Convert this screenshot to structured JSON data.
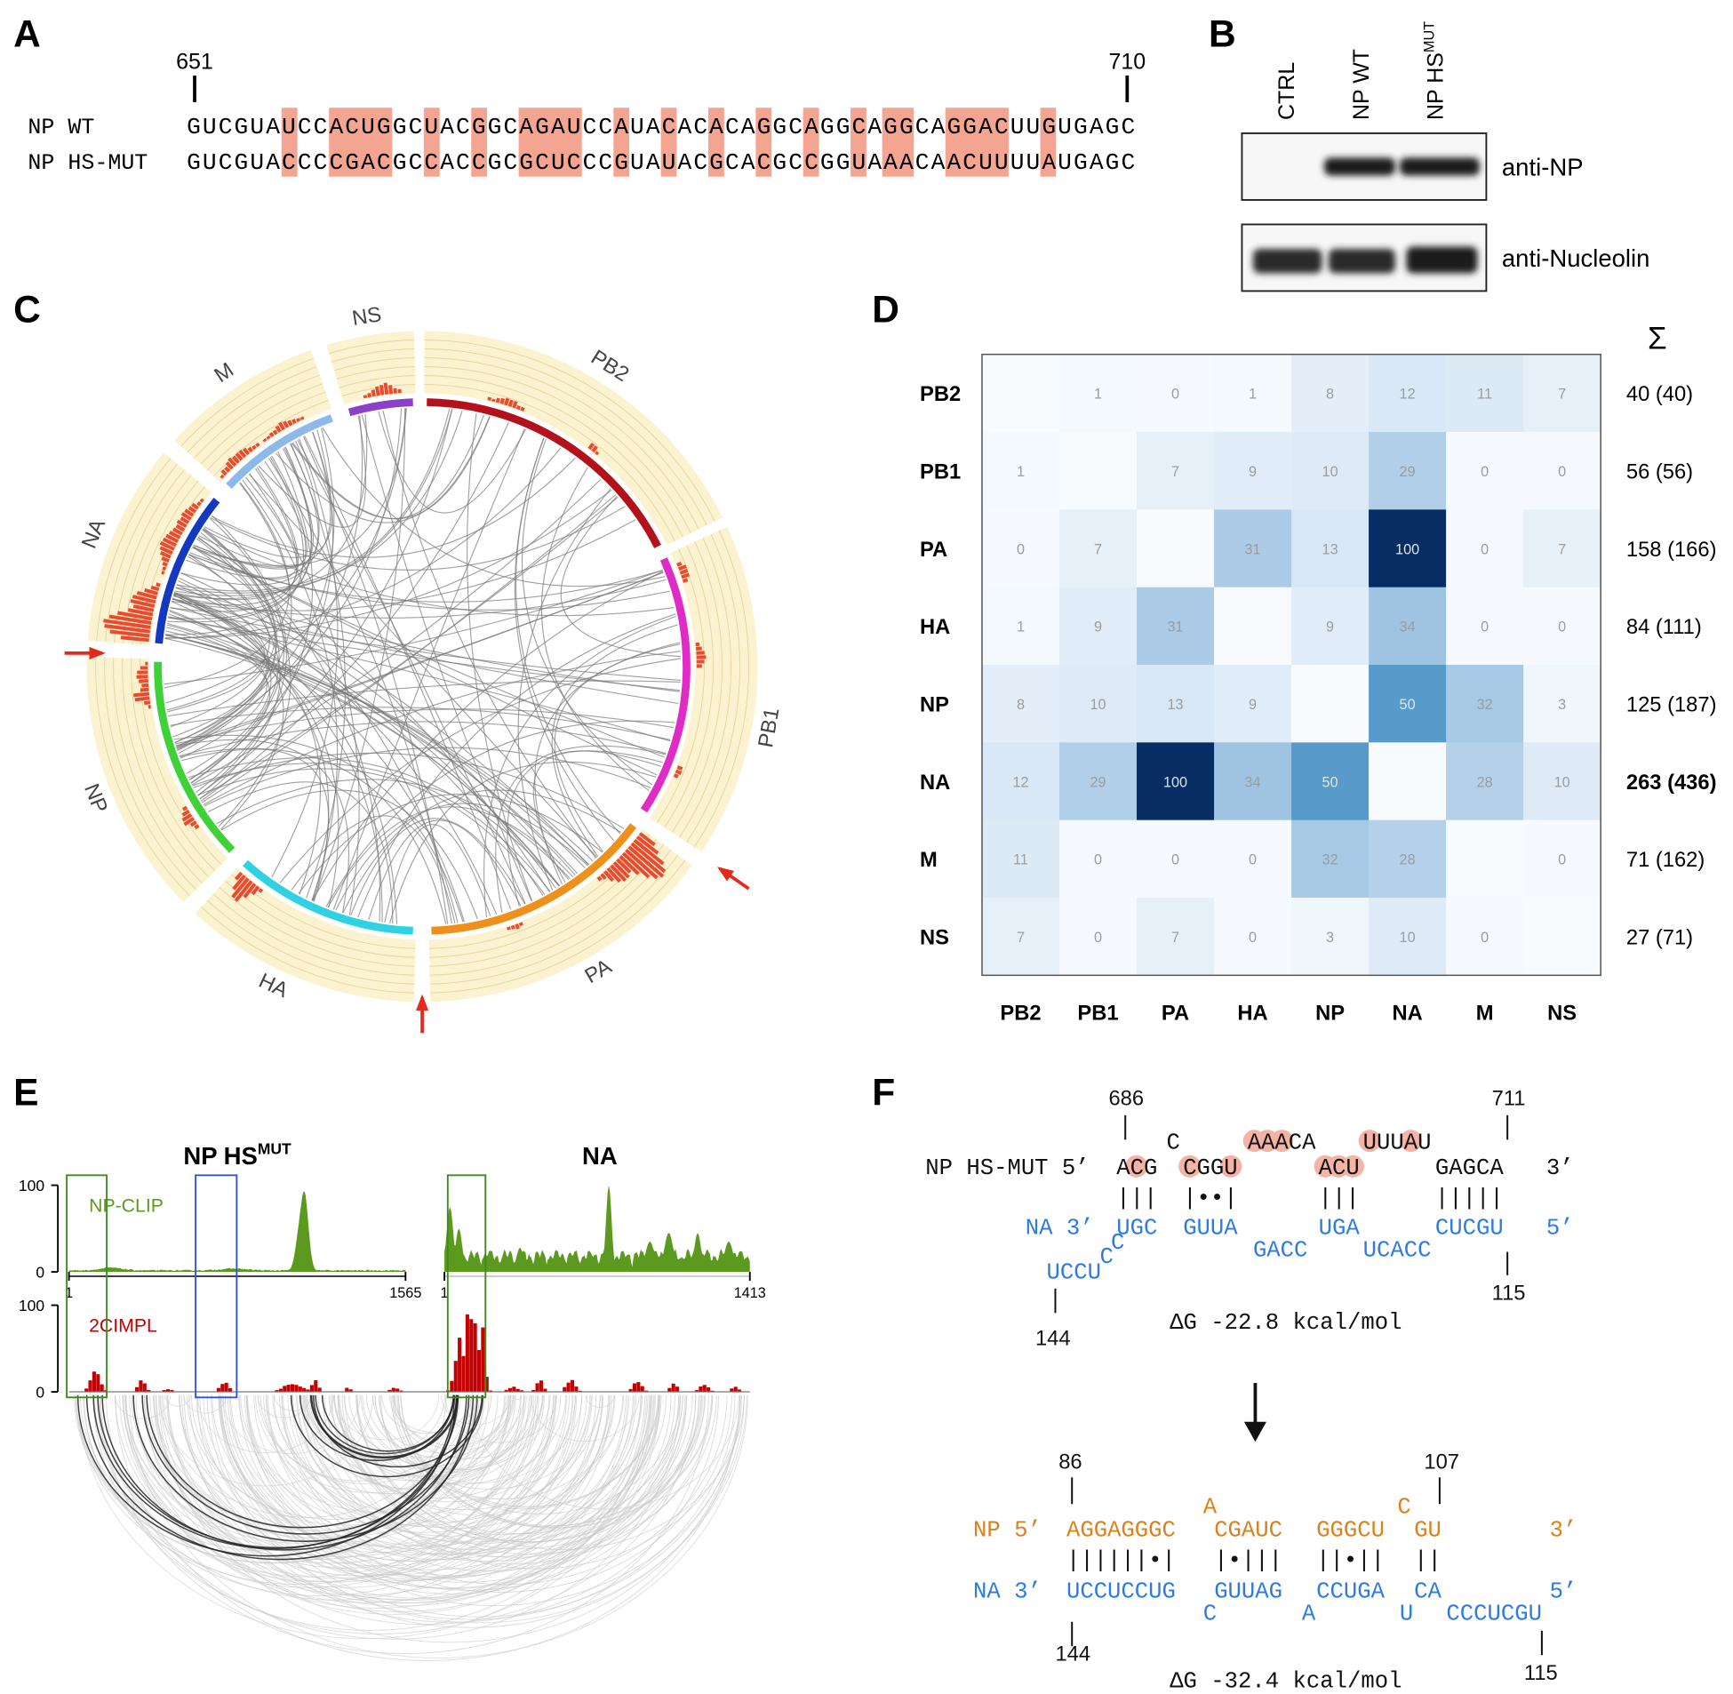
{
  "panel_a": {
    "label": "A",
    "start": "651",
    "end": "710",
    "rows": [
      {
        "name": "NP WT",
        "sequence": "GUCGUAUCCACUGGCUACGGCAGAUCCAUACACACAGGCAGGCAGGCAGGACUUGUGAGC"
      },
      {
        "name": "NP HS-MUT",
        "sequence": "GUCGUACCCCGACGCCACCGCGCUCCCGUAUACGCACGCCGGUAAACAACUUUUAUGAGC"
      }
    ]
  },
  "panel_b": {
    "label": "B",
    "lanes": [
      {
        "text": "CTRL"
      },
      {
        "text": "NP WT"
      },
      {
        "text": "NP HS",
        "sup": "MUT"
      }
    ],
    "blots": [
      "anti-NP",
      "anti-Nucleolin"
    ]
  },
  "panel_c": {
    "label": "C",
    "segments": [
      {
        "name": "PB2",
        "color": "#b3121c"
      },
      {
        "name": "PB1",
        "color": "#e02cc6"
      },
      {
        "name": "PA",
        "color": "#ef8f1c"
      },
      {
        "name": "HA",
        "color": "#2fd1e2"
      },
      {
        "name": "NP",
        "color": "#3ed238"
      },
      {
        "name": "NA",
        "color": "#1538c0"
      },
      {
        "name": "M",
        "color": "#8cb9ea"
      },
      {
        "name": "NS",
        "color": "#8a40c8"
      }
    ]
  },
  "panel_d": {
    "label": "D",
    "sum_header": "Σ",
    "rows": [
      "PB2",
      "PB1",
      "PA",
      "HA",
      "NP",
      "NA",
      "M",
      "NS"
    ],
    "columns": [
      "PB2",
      "PB1",
      "PA",
      "HA",
      "NP",
      "NA",
      "M",
      "NS"
    ],
    "matrix": [
      [
        null,
        1,
        0,
        1,
        8,
        12,
        11,
        7
      ],
      [
        1,
        null,
        7,
        9,
        10,
        29,
        0,
        0
      ],
      [
        0,
        7,
        null,
        31,
        13,
        100,
        0,
        7
      ],
      [
        1,
        9,
        31,
        null,
        9,
        34,
        0,
        0
      ],
      [
        8,
        10,
        13,
        9,
        null,
        50,
        32,
        3
      ],
      [
        12,
        29,
        100,
        34,
        50,
        null,
        28,
        10
      ],
      [
        11,
        0,
        0,
        0,
        32,
        28,
        null,
        0
      ],
      [
        7,
        0,
        7,
        0,
        3,
        10,
        0,
        null
      ]
    ],
    "sums": [
      {
        "text": "40 (40)"
      },
      {
        "text": "56 (56)"
      },
      {
        "text": "158 (166)"
      },
      {
        "text": "84 (111)"
      },
      {
        "text": "125 (187)"
      },
      {
        "text": "263 (436)",
        "bold": true
      },
      {
        "text": "71 (162)"
      },
      {
        "text": "27 (71)"
      }
    ]
  },
  "panel_e": {
    "label": "E",
    "titles": [
      {
        "text": "NP HS",
        "sup": "MUT"
      },
      {
        "text": "NA"
      }
    ],
    "tracks": [
      {
        "name": "NP-CLIP",
        "color": "#5b9a1e"
      },
      {
        "name": "2CIMPL",
        "color": "#c40000"
      }
    ],
    "yticks": [
      100,
      0
    ],
    "ranges": [
      {
        "start": 1,
        "end": 1565
      },
      {
        "start": 1,
        "end": 1413
      }
    ]
  },
  "panel_f": {
    "label": "F",
    "texts": [
      "686",
      "711",
      "C",
      "AAACA",
      "UUUAU",
      "NP HS-MUT 5’",
      "ACG",
      "CGGU",
      "ACU",
      "GAGCA",
      "3’",
      "|||",
      "|••|",
      "|||",
      "|||||",
      "NA 3’",
      "UGC",
      "GUUA",
      "UGA",
      "CUCGU",
      "5’",
      "GACC",
      "UCACC",
      "C",
      "C",
      "UCCU",
      "115",
      "144",
      "ΔG -22.8 kcal/mol",
      "86",
      "107",
      "A",
      "C",
      "NP 5’",
      "AGGAGGGC",
      "CGAUC",
      "GGGCU",
      "GU",
      "3’",
      "||||||•|",
      "|•|||",
      "||•||",
      "||",
      "NA 3’",
      "UCCUCCUG",
      "GUUAG",
      "CCUGA",
      "CA",
      "5’",
      "C",
      "A",
      "U",
      "CCCUCGU",
      "144",
      "115",
      "ΔG -32.4 kcal/mol"
    ]
  }
}
